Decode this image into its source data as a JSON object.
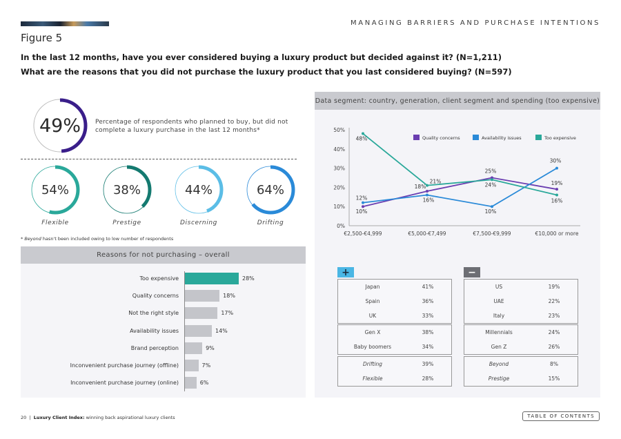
{
  "header": {
    "section_title": "MANAGING BARRIERS AND PURCHASE INTENTIONS",
    "figure_label": "Figure 5",
    "question_1": "In the last 12 months, have you ever considered buying a luxury product but decided against it? (N=1,211)",
    "question_2": "What are the reasons that you did not purchase the luxury product that you last considered buying? (N=597)"
  },
  "headline": {
    "value": 49,
    "label": "49%",
    "color": "#3a1e8a",
    "description": "Percentage of respondents who planned to buy, but did not complete a luxury purchase in the last 12 months*"
  },
  "segments": [
    {
      "name": "Flexible",
      "value": 54,
      "label": "54%",
      "color": "#2aa89a"
    },
    {
      "name": "Prestige",
      "value": 38,
      "label": "38%",
      "color": "#147a70"
    },
    {
      "name": "Discerning",
      "value": 44,
      "label": "44%",
      "color": "#5bbde6"
    },
    {
      "name": "Drifting",
      "value": 64,
      "label": "64%",
      "color": "#2a8ad8"
    }
  ],
  "footnote": {
    "italic": "Beyond",
    "rest": " hasn't been included owing to low number of respondents"
  },
  "chart_data": [
    {
      "type": "bar",
      "orientation": "horizontal",
      "title": "Reasons for not purchasing – overall",
      "categories": [
        "Too expensive",
        "Quality concerns",
        "Not the right style",
        "Availability issues",
        "Brand perception",
        "Inconvenient purchase journey (offline)",
        "Inconvenient purchase journey (online)"
      ],
      "values": [
        28,
        18,
        17,
        14,
        9,
        7,
        6
      ],
      "value_labels": [
        "28%",
        "18%",
        "17%",
        "14%",
        "9%",
        "7%",
        "6%"
      ],
      "highlight_color": "#2aa89a",
      "bar_color": "#c4c5ca",
      "xlim": [
        0,
        28
      ]
    },
    {
      "type": "line",
      "title": "Data segment: country, generation, client segment and spending (too expensive)",
      "categories": [
        "€2,500-€4,999",
        "€5,000-€7,499",
        "€7,500-€9,999",
        "€10,000 or more"
      ],
      "yticks": [
        "0%",
        "10%",
        "20%",
        "30%",
        "40%",
        "50%"
      ],
      "ylim": [
        0,
        50
      ],
      "legend_position": "top-right",
      "series": [
        {
          "name": "Quality concerns",
          "color": "#6a3db0",
          "values": [
            10,
            18,
            25,
            19
          ]
        },
        {
          "name": "Availability issues",
          "color": "#2a8ad8",
          "values": [
            12,
            16,
            10,
            30
          ]
        },
        {
          "name": "Too expensive",
          "color": "#2aa89a",
          "values": [
            48,
            21,
            24,
            16
          ]
        }
      ],
      "annotations": [
        {
          "text": "48%",
          "x": 0,
          "y": 48
        },
        {
          "text": "12%",
          "x": 0,
          "y": 12
        },
        {
          "text": "10%",
          "x": 0,
          "y": 10
        },
        {
          "text": "21%",
          "x": 1,
          "y": 21
        },
        {
          "text": "18%",
          "x": 1,
          "y": 18
        },
        {
          "text": "16%",
          "x": 1,
          "y": 16
        },
        {
          "text": "25%",
          "x": 2,
          "y": 25
        },
        {
          "text": "24%",
          "x": 2,
          "y": 24
        },
        {
          "text": "10%",
          "x": 2,
          "y": 10
        },
        {
          "text": "30%",
          "x": 3,
          "y": 30
        },
        {
          "text": "19%",
          "x": 3,
          "y": 19
        },
        {
          "text": "16%",
          "x": 3,
          "y": 16
        }
      ]
    }
  ],
  "tables": {
    "plus_symbol": "+",
    "minus_symbol": "−",
    "plus": [
      {
        "italic": false,
        "rows": [
          [
            "Japan",
            "41%"
          ],
          [
            "Spain",
            "36%"
          ],
          [
            "UK",
            "33%"
          ]
        ]
      },
      {
        "italic": false,
        "rows": [
          [
            "Gen X",
            "38%"
          ],
          [
            "Baby boomers",
            "34%"
          ]
        ]
      },
      {
        "italic": true,
        "rows": [
          [
            "Drifting",
            "39%"
          ],
          [
            "Flexible",
            "28%"
          ]
        ]
      }
    ],
    "minus": [
      {
        "italic": false,
        "rows": [
          [
            "US",
            "19%"
          ],
          [
            "UAE",
            "22%"
          ],
          [
            "Italy",
            "23%"
          ]
        ]
      },
      {
        "italic": false,
        "rows": [
          [
            "Millennials",
            "24%"
          ],
          [
            "Gen Z",
            "26%"
          ]
        ]
      },
      {
        "italic": true,
        "rows": [
          [
            "Beyond",
            "8%"
          ],
          [
            "Prestige",
            "15%"
          ]
        ]
      }
    ]
  },
  "footer": {
    "page": "20",
    "separator": "|",
    "publication": "Luxury Client Index:",
    "subtitle": " winning back aspirational luxury clients",
    "toc_button": "TABLE OF CONTENTS"
  }
}
